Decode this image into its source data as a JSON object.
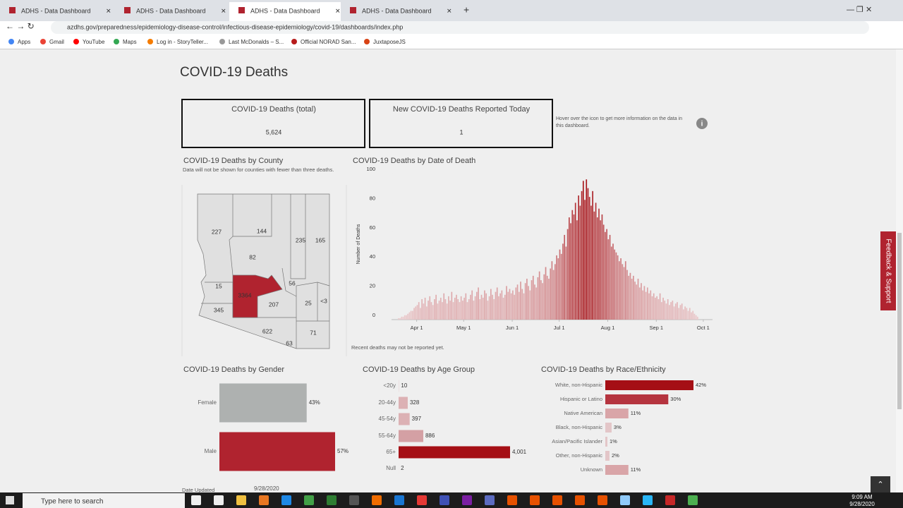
{
  "browser": {
    "tabs": [
      "ADHS - Data Dashboard",
      "ADHS - Data Dashboard",
      "ADHS - Data Dashboard",
      "ADHS - Data Dashboard"
    ],
    "url": "azdhs.gov/preparedness/epidemiology-disease-control/infectious-disease-epidemiology/covid-19/dashboards/index.php",
    "bookmarks": [
      "Apps",
      "Gmail",
      "YouTube",
      "Maps",
      "Log in - StoryTeller...",
      "Last McDonalds – S...",
      "Official NORAD San...",
      "JuxtaposeJS"
    ]
  },
  "dashboard": {
    "title": "COVID-19 Deaths",
    "kpis": [
      {
        "label": "COVID-19 Deaths (total)",
        "value": "5,624"
      },
      {
        "label": "New COVID-19 Deaths Reported Today",
        "value": "1"
      }
    ],
    "info": "Hover over the icon to get more information on the data in this dashboard.",
    "county_map": {
      "title": "COVID-19 Deaths by County",
      "note": "Data will not be shown for counties with fewer than three deaths.",
      "labels": [
        "227",
        "144",
        "82",
        "235",
        "165",
        "15",
        "3364",
        "56",
        "207",
        "25",
        "<3",
        "345",
        "622",
        "71",
        "63"
      ]
    },
    "date_chart": {
      "type": "bar",
      "title": "COVID-19 Deaths by Date of Death",
      "ylabel": "Number of Deaths",
      "ylim": [
        0,
        100
      ],
      "yticks": [
        0,
        20,
        40,
        60,
        80,
        100
      ],
      "xticks": [
        {
          "value": 12,
          "label": "Apr 1"
        },
        {
          "value": 42,
          "label": "May 1"
        },
        {
          "value": 73,
          "label": "Jun 1"
        },
        {
          "value": 103,
          "label": "Jul 1"
        },
        {
          "value": 134,
          "label": "Aug 1"
        },
        {
          "value": 165,
          "label": "Sep 1"
        },
        {
          "value": 195,
          "label": "Oct 1"
        }
      ],
      "color_low": "#ebcdcf",
      "color_high": "#a50f15",
      "values": [
        1,
        1,
        2,
        2,
        3,
        3,
        4,
        5,
        6,
        6,
        8,
        9,
        10,
        12,
        8,
        14,
        11,
        15,
        9,
        13,
        16,
        12,
        10,
        14,
        17,
        11,
        13,
        15,
        12,
        18,
        14,
        11,
        16,
        13,
        19,
        12,
        15,
        17,
        14,
        12,
        16,
        13,
        15,
        18,
        12,
        14,
        17,
        20,
        13,
        16,
        19,
        22,
        14,
        17,
        15,
        20,
        18,
        13,
        16,
        21,
        17,
        14,
        19,
        22,
        16,
        18,
        20,
        15,
        17,
        23,
        19,
        21,
        18,
        20,
        17,
        22,
        24,
        19,
        26,
        21,
        18,
        25,
        28,
        23,
        20,
        27,
        30,
        24,
        22,
        29,
        33,
        27,
        25,
        31,
        36,
        30,
        28,
        35,
        40,
        34,
        38,
        44,
        42,
        48,
        45,
        52,
        58,
        50,
        62,
        70,
        66,
        75,
        72,
        80,
        68,
        85,
        78,
        88,
        95,
        82,
        96,
        90,
        84,
        78,
        88,
        74,
        80,
        70,
        76,
        68,
        72,
        65,
        60,
        62,
        55,
        58,
        50,
        52,
        48,
        46,
        44,
        40,
        42,
        38,
        36,
        40,
        34,
        30,
        32,
        28,
        30,
        26,
        24,
        28,
        22,
        25,
        20,
        23,
        19,
        22,
        18,
        20,
        16,
        18,
        15,
        16,
        14,
        18,
        12,
        15,
        13,
        11,
        14,
        10,
        12,
        13,
        9,
        11,
        12,
        8,
        10,
        11,
        7,
        9,
        8,
        6,
        8,
        5,
        6,
        4,
        3,
        2
      ],
      "footnote": "Recent deaths may not be reported yet."
    },
    "gender_chart": {
      "type": "hbar",
      "title": "COVID-19 Deaths by Gender",
      "categories": [
        "Female",
        "Male"
      ],
      "values": [
        43,
        57
      ],
      "value_labels": [
        "43%",
        "57%"
      ],
      "colors": [
        "#aeb1b0",
        "#b0232f"
      ]
    },
    "age_chart": {
      "type": "hbar",
      "title": "COVID-19 Deaths by Age Group",
      "categories": [
        "<20y",
        "20-44y",
        "45-54y",
        "55-64y",
        "65+",
        "Null"
      ],
      "values": [
        10,
        328,
        397,
        886,
        4001,
        2
      ],
      "value_labels": [
        "10",
        "328",
        "397",
        "886",
        "4,001",
        "2"
      ],
      "colors": [
        "#e6c9cb",
        "#dcb1b4",
        "#dcb1b4",
        "#d4a0a4",
        "#a50f15",
        "#e6c9cb"
      ]
    },
    "race_chart": {
      "type": "hbar",
      "title": "COVID-19 Deaths by Race/Ethnicity",
      "categories": [
        "White, non-Hispanic",
        "Hispanic or Latino",
        "Native American",
        "Black, non-Hispanic",
        "Asian/Pacific Islander",
        "Other, non-Hispanic",
        "Unknown"
      ],
      "values": [
        42,
        30,
        11,
        3,
        1,
        2,
        11
      ],
      "value_labels": [
        "42%",
        "30%",
        "11%",
        "3%",
        "1%",
        "2%",
        "11%"
      ],
      "colors": [
        "#a50f15",
        "#b5343f",
        "#d9a5a8",
        "#e3c6c8",
        "#e3c6c8",
        "#e3c6c8",
        "#d9a5a8"
      ]
    },
    "date_updated": {
      "label": "Date Updated",
      "value": "9/28/2020"
    },
    "feedback": "Feedback & Support"
  },
  "taskbar": {
    "search": "Type here to search",
    "time": "9:09 AM",
    "date": "9/28/2020"
  }
}
